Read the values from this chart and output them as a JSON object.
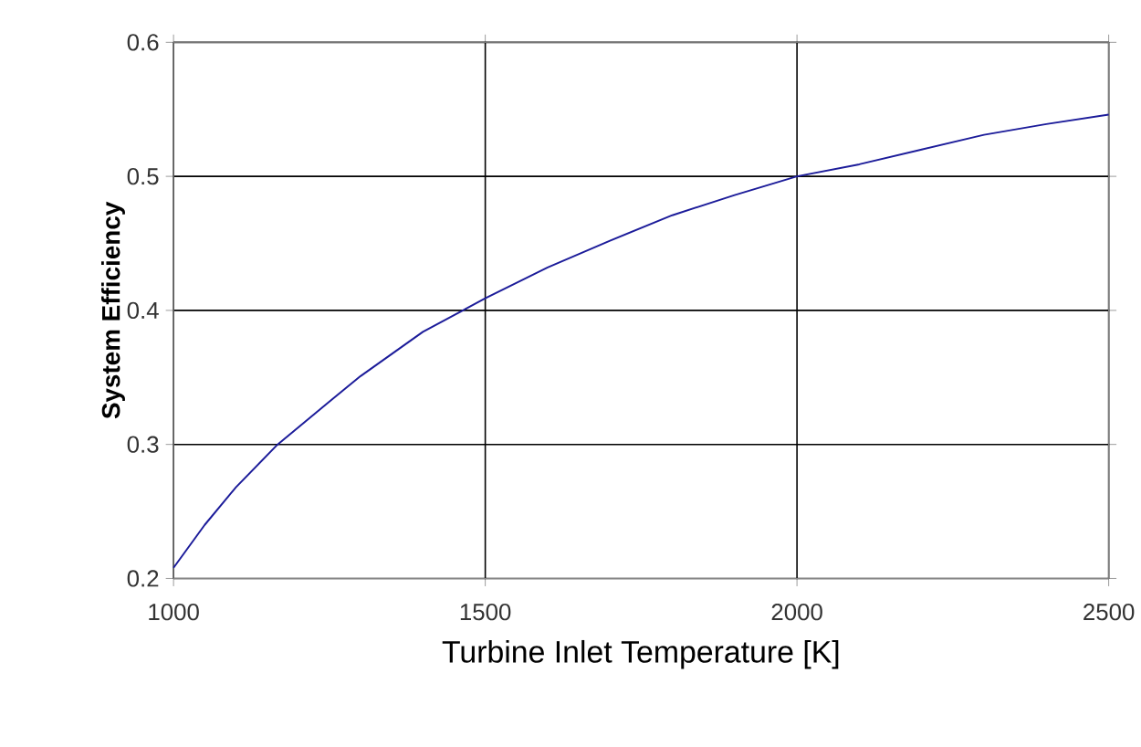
{
  "chart_data": {
    "type": "line",
    "xlabel": "Turbine Inlet Temperature [K]",
    "ylabel": "System Efficiency",
    "x": [
      1000,
      1050,
      1100,
      1167,
      1250,
      1300,
      1400,
      1500,
      1600,
      1700,
      1800,
      1900,
      2000,
      2100,
      2200,
      2300,
      2400,
      2500
    ],
    "series": [
      {
        "color": "#1c1c9a",
        "values": [
          0.208,
          0.24,
          0.268,
          0.3,
          0.332,
          0.351,
          0.384,
          0.409,
          0.432,
          0.452,
          0.471,
          0.486,
          0.5,
          0.509,
          0.52,
          0.531,
          0.539,
          0.546
        ]
      }
    ],
    "xlim": [
      1000,
      2500
    ],
    "ylim": [
      0.2,
      0.6
    ],
    "xticks": [
      1000,
      1500,
      2000,
      2500
    ],
    "yticks": [
      0.2,
      0.3,
      0.4,
      0.5,
      0.6
    ],
    "grid": true,
    "marker": "none",
    "line_style": "solid"
  }
}
